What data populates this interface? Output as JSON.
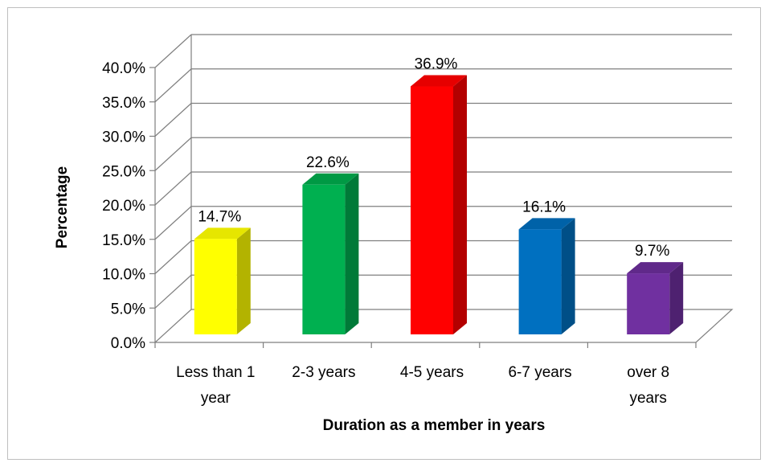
{
  "chart_data": {
    "type": "bar",
    "title": "",
    "xlabel": "Duration as a member in years",
    "ylabel": "Percentage",
    "categories": [
      "Less than 1 year",
      "2-3 years",
      "4-5 years",
      "6-7 years",
      "over 8 years"
    ],
    "category_lines": [
      [
        "Less than 1",
        "year"
      ],
      [
        "2-3 years"
      ],
      [
        "4-5 years"
      ],
      [
        "6-7 years"
      ],
      [
        "over 8",
        "years"
      ]
    ],
    "values": [
      14.7,
      22.6,
      36.9,
      16.1,
      9.7
    ],
    "value_labels": [
      "14.7%",
      "22.6%",
      "36.9%",
      "16.1%",
      "9.7%"
    ],
    "ylim": [
      0,
      40
    ],
    "ytick_values": [
      0,
      5,
      10,
      15,
      20,
      25,
      30,
      35,
      40
    ],
    "ytick_labels": [
      "0.0%",
      "5.0%",
      "10.0%",
      "15.0%",
      "20.0%",
      "25.0%",
      "30.0%",
      "35.0%",
      "40.0%"
    ],
    "grid": true,
    "legend": "none",
    "style": "3d-column",
    "colors": [
      {
        "front": "#ffff00",
        "side": "#b3b300",
        "top": "#e6e600"
      },
      {
        "front": "#00b050",
        "side": "#007a38",
        "top": "#009944"
      },
      {
        "front": "#ff0000",
        "side": "#b30000",
        "top": "#e60000"
      },
      {
        "front": "#0070c0",
        "side": "#004f87",
        "top": "#0062a8"
      },
      {
        "front": "#7030a0",
        "side": "#4e2170",
        "top": "#60298a"
      }
    ]
  }
}
